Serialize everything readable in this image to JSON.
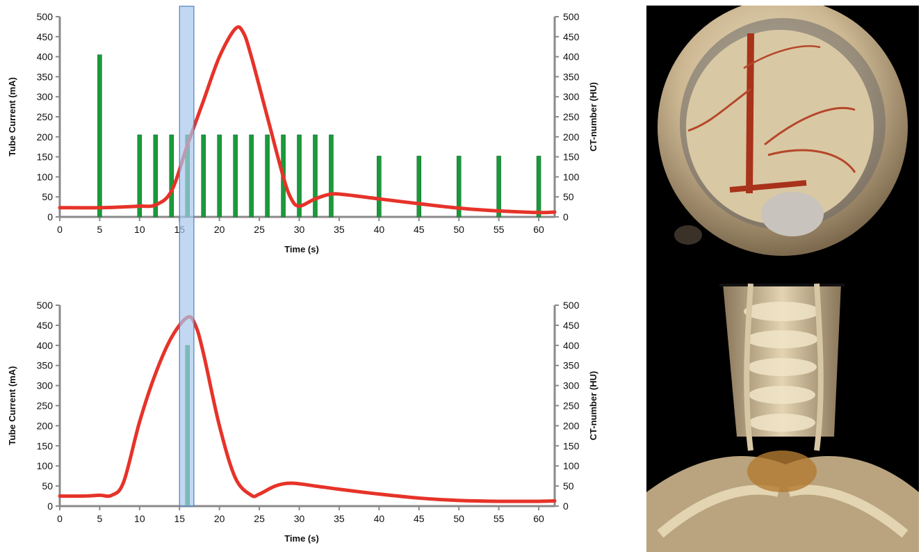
{
  "chart_data": [
    {
      "type": "bar",
      "xlabel": "Time (s)",
      "ylabel": "Tube Current (mA)",
      "y2label": "CT-number (HU)",
      "xlim": [
        0,
        62
      ],
      "ylim": [
        0,
        500
      ],
      "y2lim": [
        0,
        500
      ],
      "x_ticks": [
        0,
        5,
        10,
        15,
        20,
        25,
        30,
        35,
        40,
        45,
        50,
        55,
        60
      ],
      "y_ticks": [
        0,
        50,
        100,
        150,
        200,
        250,
        300,
        350,
        400,
        450,
        500
      ],
      "bar_color": "#1a9a3a",
      "bars": [
        {
          "x": 5,
          "value": 405
        },
        {
          "x": 10,
          "value": 205
        },
        {
          "x": 12,
          "value": 205
        },
        {
          "x": 14,
          "value": 205
        },
        {
          "x": 16,
          "value": 205
        },
        {
          "x": 18,
          "value": 205
        },
        {
          "x": 20,
          "value": 205
        },
        {
          "x": 22,
          "value": 205
        },
        {
          "x": 24,
          "value": 205
        },
        {
          "x": 26,
          "value": 205
        },
        {
          "x": 28,
          "value": 205
        },
        {
          "x": 30,
          "value": 205
        },
        {
          "x": 32,
          "value": 205
        },
        {
          "x": 34,
          "value": 205
        },
        {
          "x": 40,
          "value": 152
        },
        {
          "x": 45,
          "value": 152
        },
        {
          "x": 50,
          "value": 152
        },
        {
          "x": 55,
          "value": 152
        },
        {
          "x": 60,
          "value": 152
        }
      ],
      "curve_color": "#e63329",
      "curve": [
        [
          0,
          23
        ],
        [
          5,
          23
        ],
        [
          8,
          25
        ],
        [
          10,
          27
        ],
        [
          12,
          30
        ],
        [
          14,
          65
        ],
        [
          16,
          180
        ],
        [
          18,
          290
        ],
        [
          20,
          400
        ],
        [
          22,
          470
        ],
        [
          23,
          460
        ],
        [
          24,
          400
        ],
        [
          26,
          250
        ],
        [
          28,
          100
        ],
        [
          29,
          45
        ],
        [
          30,
          27
        ],
        [
          32,
          45
        ],
        [
          34,
          57
        ],
        [
          36,
          55
        ],
        [
          40,
          45
        ],
        [
          45,
          33
        ],
        [
          50,
          22
        ],
        [
          55,
          15
        ],
        [
          60,
          11
        ],
        [
          62,
          12
        ]
      ]
    },
    {
      "type": "bar",
      "xlabel": "Time (s)",
      "ylabel": "Tube Current (mA)",
      "y2label": "CT-number (HU)",
      "xlim": [
        0,
        62
      ],
      "ylim": [
        0,
        500
      ],
      "y2lim": [
        0,
        500
      ],
      "x_ticks": [
        0,
        5,
        10,
        15,
        20,
        25,
        30,
        35,
        40,
        45,
        50,
        55,
        60
      ],
      "y_ticks": [
        0,
        50,
        100,
        150,
        200,
        250,
        300,
        350,
        400,
        450,
        500
      ],
      "bar_color": "#1a9a3a",
      "bars": [
        {
          "x": 16,
          "value": 400
        }
      ],
      "curve_color": "#e63329",
      "curve": [
        [
          0,
          25
        ],
        [
          3,
          25
        ],
        [
          5,
          27
        ],
        [
          6.5,
          27
        ],
        [
          8,
          60
        ],
        [
          10,
          210
        ],
        [
          12,
          330
        ],
        [
          14,
          420
        ],
        [
          16,
          470
        ],
        [
          17,
          450
        ],
        [
          18,
          380
        ],
        [
          20,
          200
        ],
        [
          22,
          70
        ],
        [
          24,
          27
        ],
        [
          25,
          30
        ],
        [
          27,
          50
        ],
        [
          29,
          57
        ],
        [
          32,
          50
        ],
        [
          35,
          42
        ],
        [
          40,
          30
        ],
        [
          45,
          20
        ],
        [
          50,
          14
        ],
        [
          55,
          12
        ],
        [
          60,
          12
        ],
        [
          62,
          13
        ]
      ]
    }
  ],
  "scan_window": {
    "x_start": 15,
    "x_end": 16.8,
    "color": "#a8c8ec"
  }
}
